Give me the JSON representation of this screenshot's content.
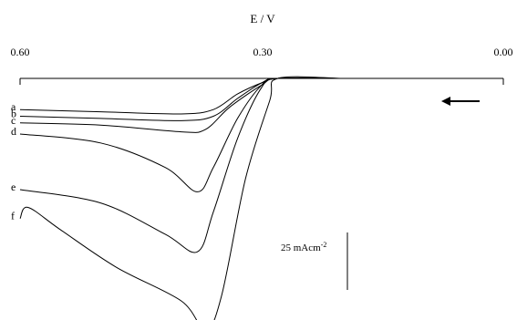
{
  "chart_data": {
    "type": "line",
    "title": "",
    "xlabel": "E / V",
    "ylabel": "",
    "xlim": [
      0.6,
      0.0
    ],
    "x_ticks": [
      "0.60",
      "0.30",
      "0.00"
    ],
    "x_reversed": true,
    "grid": false,
    "scale_bar_label": "25 mAcm",
    "scale_bar_sup": "-2",
    "scale_bar_value_mA_cm2": 25,
    "sweep_direction": "decreasing potential (arrow pointing left)",
    "series": [
      {
        "label": "a",
        "points": [
          [
            0.6,
            -14
          ],
          [
            0.5,
            -15
          ],
          [
            0.4,
            -16
          ],
          [
            0.36,
            -14
          ],
          [
            0.33,
            -7
          ],
          [
            0.3,
            -2
          ],
          [
            0.28,
            0
          ],
          [
            0.2,
            0
          ]
        ]
      },
      {
        "label": "b",
        "points": [
          [
            0.6,
            -17
          ],
          [
            0.5,
            -18
          ],
          [
            0.4,
            -19
          ],
          [
            0.36,
            -17
          ],
          [
            0.33,
            -9
          ],
          [
            0.3,
            -2
          ],
          [
            0.28,
            0
          ],
          [
            0.2,
            0
          ]
        ]
      },
      {
        "label": "c",
        "points": [
          [
            0.6,
            -20
          ],
          [
            0.5,
            -21
          ],
          [
            0.4,
            -24
          ],
          [
            0.37,
            -23
          ],
          [
            0.34,
            -13
          ],
          [
            0.3,
            -3
          ],
          [
            0.28,
            0
          ],
          [
            0.2,
            0
          ]
        ]
      },
      {
        "label": "d",
        "points": [
          [
            0.6,
            -25
          ],
          [
            0.5,
            -29
          ],
          [
            0.42,
            -40
          ],
          [
            0.38,
            -51
          ],
          [
            0.36,
            -40
          ],
          [
            0.33,
            -18
          ],
          [
            0.3,
            -3
          ],
          [
            0.28,
            0
          ],
          [
            0.2,
            0
          ]
        ]
      },
      {
        "label": "e",
        "points": [
          [
            0.6,
            -50
          ],
          [
            0.5,
            -56
          ],
          [
            0.42,
            -70
          ],
          [
            0.38,
            -78
          ],
          [
            0.36,
            -60
          ],
          [
            0.33,
            -27
          ],
          [
            0.3,
            -4
          ],
          [
            0.28,
            0
          ],
          [
            0.2,
            0
          ]
        ]
      },
      {
        "label": "f",
        "points": [
          [
            0.6,
            -63
          ],
          [
            0.59,
            -58
          ],
          [
            0.55,
            -68
          ],
          [
            0.48,
            -85
          ],
          [
            0.4,
            -100
          ],
          [
            0.37,
            -113
          ],
          [
            0.35,
            -98
          ],
          [
            0.32,
            -45
          ],
          [
            0.29,
            -10
          ],
          [
            0.28,
            0
          ],
          [
            0.2,
            0
          ]
        ]
      }
    ]
  }
}
